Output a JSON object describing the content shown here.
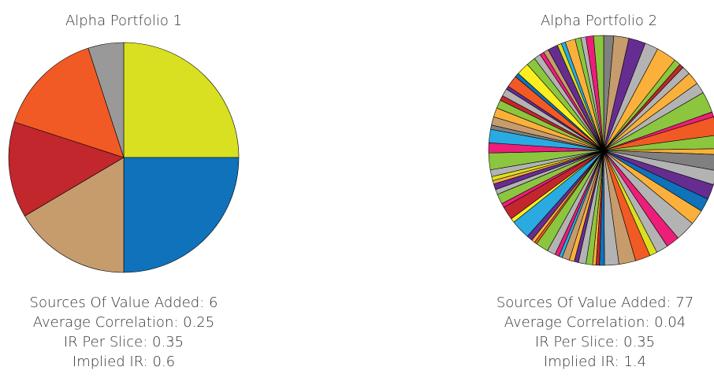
{
  "chart_data": [
    {
      "type": "pie",
      "title": "Alpha Portfolio 1",
      "values": [
        25,
        25,
        16.5,
        13.5,
        15,
        5
      ],
      "colors": [
        "#d9e021",
        "#0f72ba",
        "#c69c6d",
        "#c1272d",
        "#f15a24",
        "#999999"
      ],
      "annotations": [
        "Sources Of Value Added: 6",
        "Average Correlation: 0.25",
        "IR Per Slice: 0.35",
        "Implied IR: 0.6"
      ]
    },
    {
      "type": "pie",
      "title": "Alpha Portfolio 2",
      "values": [
        1.2,
        1.8,
        2.0,
        1.6,
        2.4,
        0.8,
        0.5,
        1.0,
        1.5,
        1.3,
        2.5,
        0.6,
        2.2,
        1.6,
        0.7,
        1.9,
        1.7,
        1.8,
        1.6,
        1.8,
        2.4,
        1.6,
        1.4,
        0.9,
        1.8,
        2.0,
        1.7,
        0.6,
        0.4,
        0.4,
        0.8,
        0.9,
        0.5,
        0.6,
        0.9,
        0.4,
        0.5,
        1.0,
        1.5,
        0.3,
        0.4,
        0.7,
        2.3,
        0.5,
        1.6,
        0.5,
        1.2,
        0.6,
        0.7,
        0.4,
        0.5,
        0.8,
        2.0,
        1.2,
        1.6,
        0.5,
        1.0,
        1.1,
        1.0,
        0.6,
        0.9,
        0.4,
        1.4,
        0.5,
        1.5,
        1.1,
        0.8,
        0.5,
        0.6,
        1.2,
        0.5,
        0.5,
        1.2,
        0.7,
        0.6,
        0.9,
        1.2
      ],
      "colors": [
        "#808080",
        "#c69c6d",
        "#662d91",
        "#b3b3b3",
        "#fbb03b",
        "#8cc63f",
        "#c1272d",
        "#b3b3b3",
        "#fbb03b",
        "#b3b3b3",
        "#8cc63f",
        "#ed1e79",
        "#f15a24",
        "#8cc63f",
        "#fbb03b",
        "#808080",
        "#b3b3b3",
        "#662d91",
        "#0f72ba",
        "#fbb03b",
        "#b3b3b3",
        "#ed1e79",
        "#b3b3b3",
        "#d9e021",
        "#f15a24",
        "#c69c6d",
        "#b3b3b3",
        "#0f72ba",
        "#c1272d",
        "#fbb03b",
        "#8cc63f",
        "#b3b3b3",
        "#662d91",
        "#fbb03b",
        "#c69c6d",
        "#29abe2",
        "#ed1e79",
        "#b3b3b3",
        "#8cc63f",
        "#f15a24",
        "#fbb03b",
        "#662d91",
        "#29abe2",
        "#fcee21",
        "#c1272d",
        "#ed1e79",
        "#8cc63f",
        "#b3b3b3",
        "#662d91",
        "#fbb03b",
        "#d9e021",
        "#b3b3b3",
        "#8cc63f",
        "#ed1e79",
        "#29abe2",
        "#808080",
        "#c69c6d",
        "#fbb03b",
        "#8cc63f",
        "#c1272d",
        "#b3b3b3",
        "#662d91",
        "#f15a24",
        "#0f72ba",
        "#fcee21",
        "#8cc63f",
        "#b3b3b3",
        "#ed1e79",
        "#c69c6d",
        "#662d91",
        "#d9e021",
        "#29abe2",
        "#fbb03b",
        "#8cc63f",
        "#b3b3b3",
        "#ed1e79",
        "#8cc63f"
      ],
      "annotations": [
        "Sources Of Value Added: 77",
        "Average Correlation: 0.04",
        "IR Per Slice: 0.35",
        "Implied IR: 1.4"
      ]
    }
  ]
}
